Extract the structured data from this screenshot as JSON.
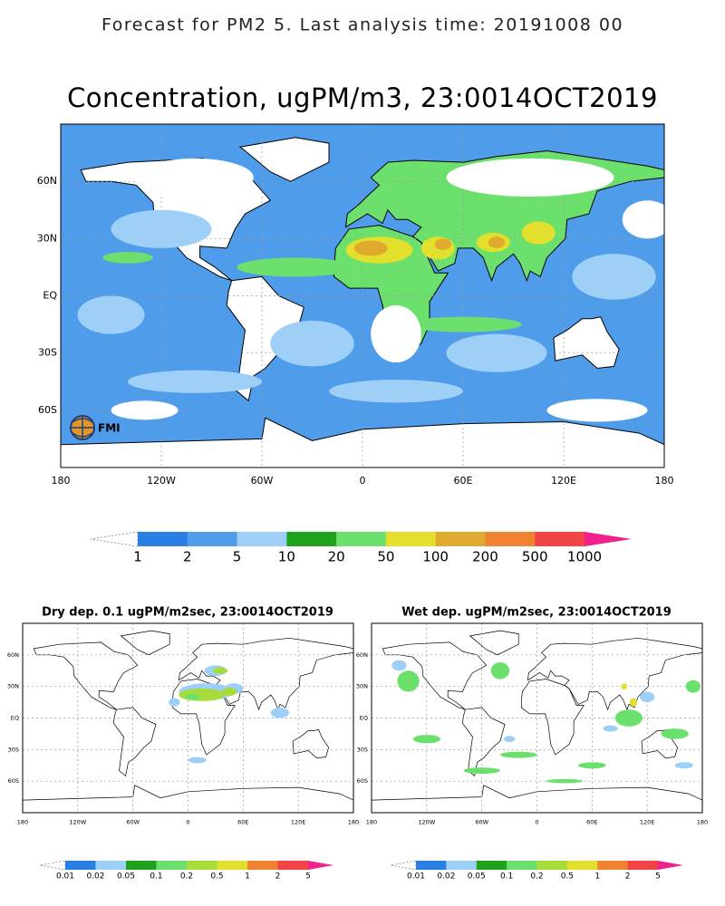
{
  "header": {
    "title": "Forecast for PM2 5. Last analysis time: 20191008 00"
  },
  "main_map": {
    "title": "Concentration, ugPM/m3, 23:0014OCT2019",
    "lat_labels": [
      "60N",
      "30N",
      "EQ",
      "30S",
      "60S"
    ],
    "lon_labels": [
      "180",
      "120W",
      "60W",
      "0",
      "60E",
      "120E",
      "180"
    ],
    "logo": "FMI"
  },
  "main_colorbar": {
    "labels": [
      "1",
      "2",
      "5",
      "10",
      "20",
      "50",
      "100",
      "200",
      "500",
      "1000"
    ],
    "colors": [
      "#2a7fe2",
      "#4f9cea",
      "#9ecff6",
      "#1fa31f",
      "#6ce06c",
      "#e2e02c",
      "#e0aa2e",
      "#f08232",
      "#f24444"
    ],
    "above_color": "#f0208c"
  },
  "dry_map": {
    "title": "Dry dep. 0.1 ugPM/m2sec, 23:0014OCT2019",
    "lat_labels": [
      "60N",
      "30N",
      "EQ",
      "30S",
      "60S"
    ],
    "lon_labels": [
      "180",
      "120W",
      "60W",
      "0",
      "60E",
      "120E",
      "180"
    ]
  },
  "dry_colorbar": {
    "labels": [
      "0.01",
      "0.02",
      "0.05",
      "0.1",
      "0.2",
      "0.5",
      "1",
      "2",
      "5"
    ],
    "colors": [
      "#2a7fe2",
      "#9ecff6",
      "#1fa31f",
      "#6ce06c",
      "#a8dc3a",
      "#e2e02c",
      "#f08232",
      "#f24444"
    ],
    "above_color": "#f0208c"
  },
  "wet_map": {
    "title": "Wet dep. ugPM/m2sec, 23:0014OCT2019",
    "lat_labels": [
      "60N",
      "30N",
      "EQ",
      "30S",
      "60S"
    ],
    "lon_labels": [
      "180",
      "120W",
      "60W",
      "0",
      "60E",
      "120E",
      "180"
    ]
  },
  "wet_colorbar": {
    "labels": [
      "0.01",
      "0.02",
      "0.05",
      "0.1",
      "0.2",
      "0.5",
      "1",
      "2",
      "5"
    ],
    "colors": [
      "#2a7fe2",
      "#9ecff6",
      "#1fa31f",
      "#6ce06c",
      "#a8dc3a",
      "#e2e02c",
      "#f08232",
      "#f24444"
    ],
    "above_color": "#f0208c"
  }
}
